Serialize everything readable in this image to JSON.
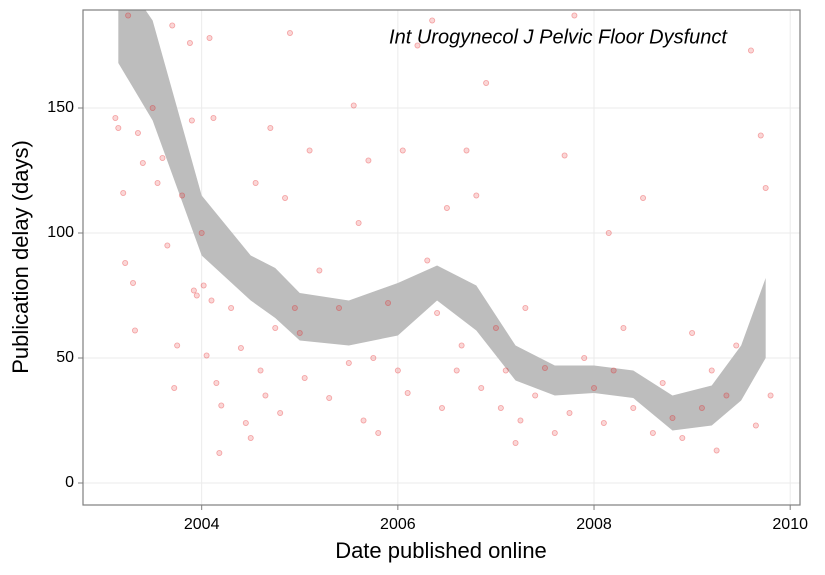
{
  "chart_data": {
    "type": "scatter",
    "annotation": "Int Urogynecol J Pelvic Floor Dysfunct",
    "x_label": "Date published online",
    "y_label": "Publication delay (days)",
    "xlim": [
      2002.79,
      2010.1
    ],
    "xticks": [
      2004,
      2006,
      2008,
      2010
    ],
    "ylim": [
      -8.8,
      189.2
    ],
    "yticks": [
      0,
      50,
      100,
      150
    ],
    "grid": true,
    "series": [
      {
        "color": "#e41a1c",
        "x": [
          2003.12,
          2003.15,
          2003.2,
          2003.22,
          2003.25,
          2003.3,
          2003.32,
          2003.35,
          2003.4,
          2003.5,
          2003.55,
          2003.6,
          2003.65,
          2003.7,
          2003.72,
          2003.75,
          2003.8,
          2003.88,
          2003.9,
          2003.92,
          2003.95,
          2004.0,
          2004.02,
          2004.05,
          2004.08,
          2004.1,
          2004.12,
          2004.15,
          2004.18,
          2004.2,
          2004.3,
          2004.4,
          2004.45,
          2004.5,
          2004.55,
          2004.6,
          2004.65,
          2004.7,
          2004.75,
          2004.8,
          2004.85,
          2004.9,
          2004.95,
          2005.0,
          2005.05,
          2005.1,
          2005.2,
          2005.3,
          2005.4,
          2005.5,
          2005.55,
          2005.6,
          2005.65,
          2005.7,
          2005.75,
          2005.8,
          2005.9,
          2006.0,
          2006.05,
          2006.1,
          2006.2,
          2006.3,
          2006.35,
          2006.4,
          2006.45,
          2006.5,
          2006.6,
          2006.65,
          2006.7,
          2006.8,
          2006.85,
          2006.9,
          2007.0,
          2007.05,
          2007.1,
          2007.2,
          2007.25,
          2007.3,
          2007.4,
          2007.5,
          2007.6,
          2007.7,
          2007.75,
          2007.8,
          2007.9,
          2008.0,
          2008.1,
          2008.15,
          2008.2,
          2008.3,
          2008.4,
          2008.5,
          2008.6,
          2008.7,
          2008.8,
          2008.9,
          2009.0,
          2009.1,
          2009.2,
          2009.25,
          2009.35,
          2009.45,
          2009.6,
          2009.65,
          2009.7,
          2009.75,
          2009.8
        ],
        "values": [
          146,
          142,
          116,
          88,
          187,
          80,
          61,
          140,
          128,
          150,
          120,
          130,
          95,
          183,
          38,
          55,
          115,
          176,
          145,
          77,
          75,
          100,
          79,
          51,
          178,
          73,
          146,
          40,
          12,
          31,
          70,
          54,
          24,
          18,
          120,
          45,
          35,
          142,
          62,
          28,
          114,
          180,
          70,
          60,
          42,
          133,
          85,
          34,
          70,
          48,
          151,
          104,
          25,
          129,
          50,
          20,
          72,
          45,
          133,
          36,
          175,
          89,
          185,
          68,
          30,
          110,
          45,
          55,
          133,
          115,
          38,
          160,
          62,
          30,
          45,
          16,
          25,
          70,
          35,
          46,
          20,
          131,
          28,
          187,
          50,
          38,
          24,
          100,
          45,
          62,
          30,
          114,
          20,
          40,
          26,
          18,
          60,
          30,
          45,
          13,
          35,
          55,
          173,
          23,
          139,
          118,
          35
        ]
      }
    ],
    "band": {
      "color": "#bdbdbd",
      "x": [
        2003.15,
        2003.5,
        2004.0,
        2004.5,
        2004.75,
        2005.0,
        2005.5,
        2006.0,
        2006.4,
        2006.8,
        2007.2,
        2007.6,
        2008.0,
        2008.4,
        2008.8,
        2009.2,
        2009.5,
        2009.75
      ],
      "upper": [
        205,
        185,
        115,
        91,
        86,
        76,
        73,
        80,
        87,
        79,
        55,
        47,
        47,
        45,
        35,
        39,
        55,
        82
      ],
      "lower": [
        168,
        145,
        91,
        73,
        66,
        57,
        55,
        59,
        73,
        61,
        41,
        35,
        36,
        34,
        21,
        23,
        33,
        50
      ]
    }
  }
}
